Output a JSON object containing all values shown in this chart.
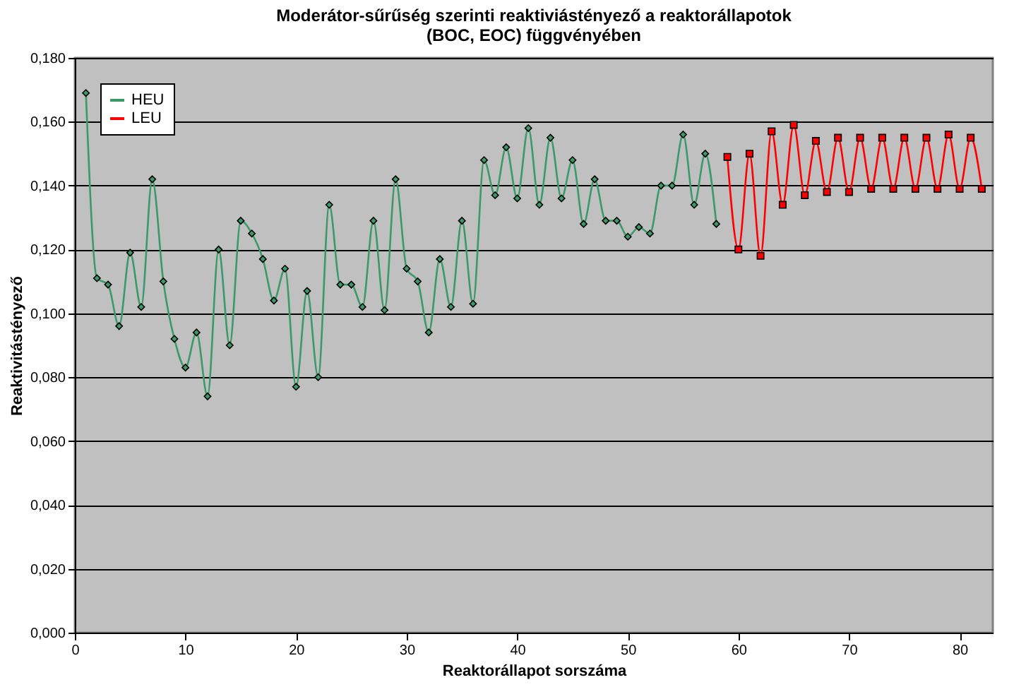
{
  "chart_data": {
    "type": "line",
    "title": "Moderátor-sűrűség szerinti reaktiviástényező a reaktorállapotok (BOC, EOC) függvényében",
    "xlabel": "Reaktorállapot sorszáma",
    "ylabel": "Reaktivitástényező",
    "xlim": [
      0,
      83
    ],
    "xticks": [
      0,
      10,
      20,
      30,
      40,
      50,
      60,
      70,
      80
    ],
    "ylim": [
      0,
      0.18
    ],
    "yticks": [
      {
        "value": 0,
        "label": "0,000"
      },
      {
        "value": 0.02,
        "label": "0,020"
      },
      {
        "value": 0.04,
        "label": "0,040"
      },
      {
        "value": 0.06,
        "label": "0,060"
      },
      {
        "value": 0.08,
        "label": "0,080"
      },
      {
        "value": 0.1,
        "label": "0,100"
      },
      {
        "value": 0.12,
        "label": "0,120"
      },
      {
        "value": 0.14,
        "label": "0,140"
      },
      {
        "value": 0.16,
        "label": "0,160"
      },
      {
        "value": 0.18,
        "label": "0,180"
      }
    ],
    "grid": "y",
    "legend": "top left",
    "series": [
      {
        "name": "HEU",
        "color": "#3a9a6a",
        "marker": "diamond",
        "x": [
          1,
          2,
          3,
          4,
          5,
          6,
          7,
          8,
          9,
          10,
          11,
          12,
          13,
          14,
          15,
          16,
          17,
          18,
          19,
          20,
          21,
          22,
          23,
          24,
          25,
          26,
          27,
          28,
          29,
          30,
          31,
          32,
          33,
          34,
          35,
          36,
          37,
          38,
          39,
          40,
          41,
          42,
          43,
          44,
          45,
          46,
          47,
          48,
          49,
          50,
          51,
          52,
          53,
          54,
          55,
          56,
          57,
          58
        ],
        "values": [
          0.169,
          0.111,
          0.109,
          0.096,
          0.119,
          0.102,
          0.142,
          0.11,
          0.092,
          0.083,
          0.094,
          0.074,
          0.12,
          0.09,
          0.129,
          0.125,
          0.117,
          0.104,
          0.114,
          0.077,
          0.107,
          0.08,
          0.134,
          0.109,
          0.109,
          0.102,
          0.129,
          0.101,
          0.142,
          0.114,
          0.11,
          0.094,
          0.117,
          0.102,
          0.129,
          0.103,
          0.148,
          0.137,
          0.152,
          0.136,
          0.158,
          0.134,
          0.155,
          0.136,
          0.148,
          0.128,
          0.142,
          0.129,
          0.129,
          0.124,
          0.127,
          0.125,
          0.14,
          0.14,
          0.156,
          0.134,
          0.15,
          0.128
        ]
      },
      {
        "name": "LEU",
        "color": "#ff0000",
        "marker": "square",
        "x": [
          59,
          60,
          61,
          62,
          63,
          64,
          65,
          66,
          67,
          68,
          69,
          70,
          71,
          72,
          73,
          74,
          75,
          76,
          77,
          78,
          79,
          80,
          81,
          82
        ],
        "values": [
          0.149,
          0.12,
          0.15,
          0.118,
          0.157,
          0.134,
          0.159,
          0.137,
          0.154,
          0.138,
          0.155,
          0.138,
          0.155,
          0.139,
          0.155,
          0.139,
          0.155,
          0.139,
          0.155,
          0.139,
          0.156,
          0.139,
          0.155,
          0.139
        ]
      }
    ]
  }
}
